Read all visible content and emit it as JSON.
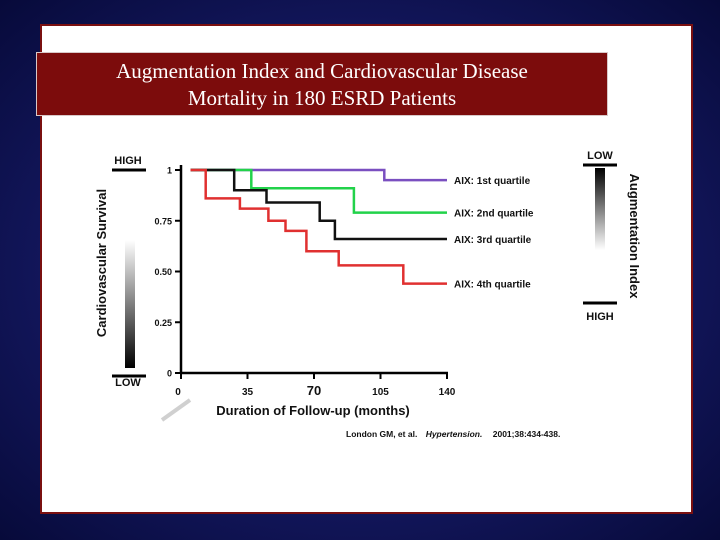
{
  "title_line1": "Augmentation Index and Cardiovascular Disease",
  "title_line2": "Mortality in 180 ESRD Patients",
  "colors": {
    "background": "#141860",
    "title_bar": "#7c0c0c",
    "border": "#7a1010"
  },
  "chart_data": {
    "type": "line",
    "xlabel": "Duration of Follow-up (months)",
    "ylabel": "Cardiovascular Survival",
    "xlim": [
      0,
      140
    ],
    "ylim": [
      0,
      1
    ],
    "x_ticks": [
      "0",
      "35",
      "70",
      "105",
      "140"
    ],
    "y_ticks": [
      "0",
      "0.25",
      "0.50",
      "0.75",
      "1"
    ],
    "y_high_label": "HIGH",
    "y_low_label": "LOW",
    "right_axis_label": "Augmentation Index",
    "right_low_label": "LOW",
    "right_high_label": "HIGH",
    "series": [
      {
        "name": "AIX: 1st quartile",
        "color": "#7a4fc0",
        "points": [
          [
            5,
            1
          ],
          [
            107,
            1
          ],
          [
            107,
            0.95
          ],
          [
            140,
            0.95
          ]
        ]
      },
      {
        "name": "AIX: 2nd quartile",
        "color": "#22d24a",
        "points": [
          [
            5,
            1
          ],
          [
            37,
            1
          ],
          [
            37,
            0.91
          ],
          [
            91,
            0.91
          ],
          [
            91,
            0.79
          ],
          [
            140,
            0.79
          ]
        ]
      },
      {
        "name": "AIX: 3rd quartile",
        "color": "#111111",
        "points": [
          [
            5,
            1
          ],
          [
            28,
            1
          ],
          [
            28,
            0.9
          ],
          [
            45,
            0.9
          ],
          [
            45,
            0.84
          ],
          [
            73,
            0.84
          ],
          [
            73,
            0.75
          ],
          [
            81,
            0.75
          ],
          [
            81,
            0.66
          ],
          [
            140,
            0.66
          ]
        ]
      },
      {
        "name": "AIX: 4th quartile",
        "color": "#e03030",
        "points": [
          [
            5,
            1
          ],
          [
            13,
            1
          ],
          [
            13,
            0.86
          ],
          [
            31,
            0.86
          ],
          [
            31,
            0.81
          ],
          [
            46,
            0.81
          ],
          [
            46,
            0.75
          ],
          [
            55,
            0.75
          ],
          [
            55,
            0.7
          ],
          [
            66,
            0.7
          ],
          [
            66,
            0.6
          ],
          [
            83,
            0.6
          ],
          [
            83,
            0.53
          ],
          [
            117,
            0.53
          ],
          [
            117,
            0.44
          ],
          [
            140,
            0.44
          ]
        ]
      }
    ],
    "citation_authors": "London GM, et al.",
    "citation_journal": "Hypertension.",
    "citation_ref": "2001;38:434-438."
  }
}
